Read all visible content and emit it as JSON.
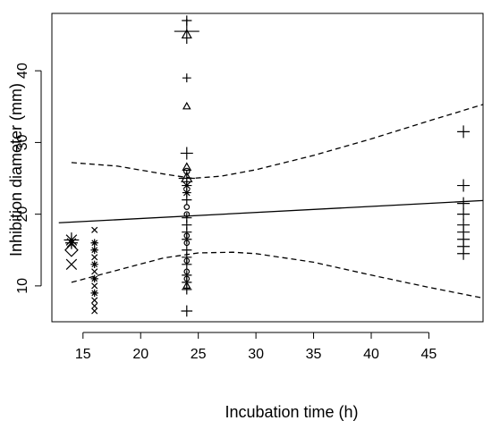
{
  "chart_data": {
    "type": "scatter",
    "title": "",
    "xlabel": "Incubation time (h)",
    "ylabel": "Inhibition diameter (mm)",
    "xlim": [
      12.3,
      49.7
    ],
    "ylim": [
      5,
      48
    ],
    "x_ticks": [
      15,
      20,
      25,
      30,
      35,
      40,
      45
    ],
    "y_ticks": [
      10,
      20,
      30,
      40
    ],
    "grid": false,
    "legend": "none",
    "colors": {
      "points": "#000000",
      "lines": "#000000",
      "background": "#ffffff"
    },
    "points": [
      {
        "x": 14,
        "y": 16.4,
        "marker": "star",
        "size": 1.2
      },
      {
        "x": 14,
        "y": 16.0,
        "marker": "star",
        "size": 1.0
      },
      {
        "x": 14,
        "y": 15.0,
        "marker": "diamond",
        "size": 1.0
      },
      {
        "x": 14,
        "y": 13.0,
        "marker": "x",
        "size": 1.1
      },
      {
        "x": 16,
        "y": 17.8,
        "marker": "x",
        "size": 0.6
      },
      {
        "x": 16,
        "y": 16.0,
        "marker": "star",
        "size": 0.6
      },
      {
        "x": 16,
        "y": 15.0,
        "marker": "star",
        "size": 0.6
      },
      {
        "x": 16,
        "y": 14.0,
        "marker": "x",
        "size": 0.6
      },
      {
        "x": 16,
        "y": 13.0,
        "marker": "star",
        "size": 0.6
      },
      {
        "x": 16,
        "y": 12.0,
        "marker": "x",
        "size": 0.6
      },
      {
        "x": 16,
        "y": 11.0,
        "marker": "star",
        "size": 0.6
      },
      {
        "x": 16,
        "y": 10.0,
        "marker": "x",
        "size": 0.6
      },
      {
        "x": 16,
        "y": 9.0,
        "marker": "star",
        "size": 0.6
      },
      {
        "x": 16,
        "y": 8.0,
        "marker": "x",
        "size": 0.6
      },
      {
        "x": 16,
        "y": 7.2,
        "marker": "x",
        "size": 0.6
      },
      {
        "x": 16,
        "y": 6.5,
        "marker": "x",
        "size": 0.6
      },
      {
        "x": 24,
        "y": 47.0,
        "marker": "plus",
        "size": 0.8
      },
      {
        "x": 24,
        "y": 45.5,
        "marker": "plus",
        "size": 2.0
      },
      {
        "x": 24,
        "y": 45.0,
        "marker": "triangle",
        "size": 0.8
      },
      {
        "x": 24,
        "y": 39.0,
        "marker": "plus",
        "size": 0.7
      },
      {
        "x": 24,
        "y": 35.0,
        "marker": "triangle",
        "size": 0.6
      },
      {
        "x": 24,
        "y": 28.5,
        "marker": "plus",
        "size": 1.0
      },
      {
        "x": 24,
        "y": 26.5,
        "marker": "triangle",
        "size": 0.7
      },
      {
        "x": 24,
        "y": 26.0,
        "marker": "circle",
        "size": 0.7
      },
      {
        "x": 24,
        "y": 25.0,
        "marker": "plus",
        "size": 1.3
      },
      {
        "x": 24,
        "y": 25.0,
        "marker": "triangle",
        "size": 0.9
      },
      {
        "x": 24,
        "y": 24.0,
        "marker": "star",
        "size": 0.8
      },
      {
        "x": 24,
        "y": 23.0,
        "marker": "star",
        "size": 0.7
      },
      {
        "x": 24,
        "y": 22.0,
        "marker": "plus",
        "size": 0.8
      },
      {
        "x": 24,
        "y": 21.0,
        "marker": "circle",
        "size": 0.6
      },
      {
        "x": 24,
        "y": 20.0,
        "marker": "circle",
        "size": 0.6
      },
      {
        "x": 24,
        "y": 19.5,
        "marker": "plus",
        "size": 0.8
      },
      {
        "x": 24,
        "y": 18.5,
        "marker": "plus",
        "size": 0.8
      },
      {
        "x": 24,
        "y": 17.5,
        "marker": "plus",
        "size": 0.8
      },
      {
        "x": 24,
        "y": 17.0,
        "marker": "circle",
        "size": 0.6
      },
      {
        "x": 24,
        "y": 16.5,
        "marker": "plus",
        "size": 0.8
      },
      {
        "x": 24,
        "y": 16.0,
        "marker": "circle",
        "size": 0.6
      },
      {
        "x": 24,
        "y": 15.0,
        "marker": "plus",
        "size": 0.8
      },
      {
        "x": 24,
        "y": 14.0,
        "marker": "plus",
        "size": 0.8
      },
      {
        "x": 24,
        "y": 13.5,
        "marker": "circle",
        "size": 0.6
      },
      {
        "x": 24,
        "y": 13.0,
        "marker": "plus",
        "size": 0.8
      },
      {
        "x": 24,
        "y": 12.0,
        "marker": "circle",
        "size": 0.6
      },
      {
        "x": 24,
        "y": 11.5,
        "marker": "plus",
        "size": 0.8
      },
      {
        "x": 24,
        "y": 11.0,
        "marker": "circle",
        "size": 0.6
      },
      {
        "x": 24,
        "y": 10.5,
        "marker": "plus",
        "size": 0.8
      },
      {
        "x": 24,
        "y": 10.0,
        "marker": "triangle",
        "size": 0.6
      },
      {
        "x": 24,
        "y": 9.5,
        "marker": "plus",
        "size": 0.8
      },
      {
        "x": 24,
        "y": 6.5,
        "marker": "plus",
        "size": 0.9
      },
      {
        "x": 48,
        "y": 31.5,
        "marker": "plus",
        "size": 1.0
      },
      {
        "x": 48,
        "y": 24.0,
        "marker": "plus",
        "size": 1.0
      },
      {
        "x": 48,
        "y": 21.5,
        "marker": "plus",
        "size": 1.0
      },
      {
        "x": 48,
        "y": 20.0,
        "marker": "plus",
        "size": 1.0
      },
      {
        "x": 48,
        "y": 18.5,
        "marker": "plus",
        "size": 1.0
      },
      {
        "x": 48,
        "y": 17.5,
        "marker": "plus",
        "size": 1.0
      },
      {
        "x": 48,
        "y": 16.5,
        "marker": "plus",
        "size": 1.0
      },
      {
        "x": 48,
        "y": 15.5,
        "marker": "plus",
        "size": 1.0
      },
      {
        "x": 48,
        "y": 14.5,
        "marker": "plus",
        "size": 1.0
      }
    ],
    "fit_line": {
      "x": [
        12.9,
        49.7
      ],
      "y": [
        18.8,
        21.9
      ],
      "style": "solid"
    },
    "confidence_bands": {
      "upper": {
        "x": [
          14,
          18,
          22,
          24.5,
          27,
          30,
          35,
          40,
          45,
          49.7
        ],
        "y": [
          27.2,
          26.7,
          25.6,
          25.0,
          25.3,
          26.2,
          28.2,
          30.5,
          33.0,
          35.3
        ]
      },
      "lower": {
        "x": [
          14,
          18,
          22,
          25,
          28,
          30,
          35,
          40,
          45,
          49.7
        ],
        "y": [
          10.5,
          12.2,
          13.9,
          14.6,
          14.7,
          14.5,
          13.3,
          11.5,
          9.8,
          8.3
        ]
      },
      "style": "dashed"
    }
  }
}
